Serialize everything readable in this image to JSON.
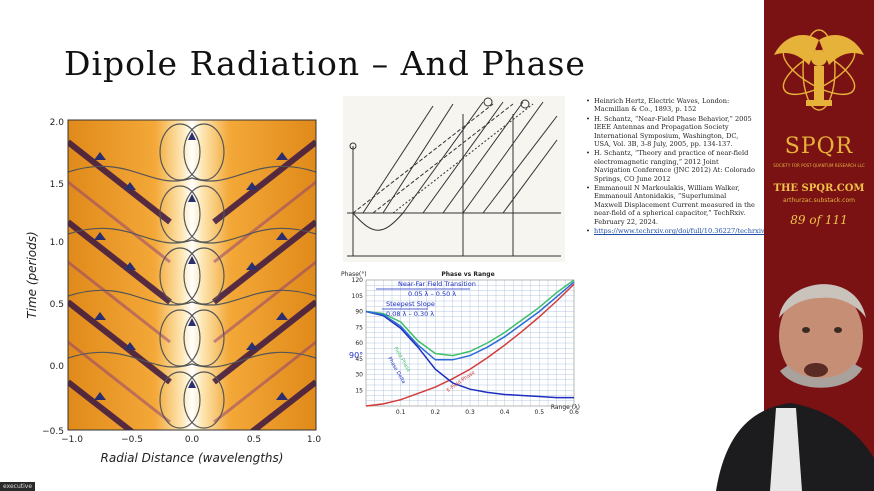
{
  "slide": {
    "title": "Dipole Radiation – And Phase",
    "page_counter": "89 of 111"
  },
  "left_plot": {
    "xlabel": "Radial Distance (wavelengths)",
    "ylabel": "Time (periods)",
    "xticks": [
      "−1.0",
      "−0.5",
      "0.0",
      "0.5",
      "1.0"
    ],
    "yticks": [
      "−0.5",
      "0.0",
      "0.5",
      "1.0",
      "1.5",
      "2.0"
    ]
  },
  "sketch": {
    "description_free": true
  },
  "phase_plot": {
    "title": "Phase vs Range",
    "ylabel": "Phase(°)",
    "xlabel": "Range (λ)",
    "yticks": [
      "15",
      "30",
      "45",
      "60",
      "75",
      "90",
      "105",
      "120"
    ],
    "xticks": [
      "0.1",
      "0.2",
      "0.3",
      "0.4",
      "0.5",
      "0.6"
    ],
    "annotations": {
      "nf_transition": "Near-Far Field Transition",
      "nf_range": "0.05 λ – 0.50 λ",
      "steepest": "Steepest Slope",
      "steepest_range": "0.08 λ – 0.30 λ",
      "ninety": "90°",
      "field_phase": "Field Phase",
      "phase_delta": "Phase Delta",
      "e_phase": "E-Field Phase",
      "h_phase": "H-Field Phase"
    }
  },
  "chart_data": {
    "type": "line",
    "title": "Phase vs Range",
    "xlabel": "Range (λ)",
    "ylabel": "Phase(°)",
    "xlim": [
      0,
      0.6
    ],
    "ylim": [
      0,
      120
    ],
    "grid": true,
    "x": [
      0.0,
      0.05,
      0.1,
      0.15,
      0.2,
      0.25,
      0.3,
      0.35,
      0.4,
      0.45,
      0.5,
      0.55,
      0.6
    ],
    "series": [
      {
        "name": "E-Field Phase",
        "color": "#d33c3c",
        "values": [
          0,
          2,
          6,
          12,
          18,
          26,
          35,
          46,
          58,
          71,
          85,
          100,
          116
        ]
      },
      {
        "name": "H-Field Phase",
        "color": "#3fbf6a",
        "values": [
          90,
          88,
          80,
          62,
          50,
          48,
          52,
          60,
          70,
          82,
          94,
          108,
          120
        ]
      },
      {
        "name": "Phase Delta",
        "color": "#1c2fc0",
        "values": [
          90,
          86,
          74,
          56,
          35,
          22,
          16,
          13,
          11,
          10,
          9,
          8,
          8
        ]
      },
      {
        "name": "Field Phase",
        "color": "#2e6bd8",
        "values": [
          90,
          87,
          76,
          58,
          44,
          44,
          48,
          56,
          66,
          78,
          90,
          104,
          118
        ]
      }
    ]
  },
  "references": [
    {
      "text": "Heinrich Hertz, Electric Waves, London: Macmillan & Co., 1893, p. 152"
    },
    {
      "text": "H. Schantz, “Near-Field Phase Behavior,” 2005 IEEE Antennas and Propagation Society International Symposium, Washington, DC, USA, Vol. 3B, 3-8 July, 2005, pp. 134-137."
    },
    {
      "text": "H. Schantz, “Theory and practice of near-field electromagnetic ranging,” 2012 Joint Navigation Conference (JNC 2012) At: Colorado Springs, CO June 2012"
    },
    {
      "text": "Emmanouil N Markoulakis, William Walker, Emmanouil Antonidakis, “Superluminal Maxwell Displacement Current measured in the near-field of a spherical capacitor,” TechRxiv. February 22, 2024."
    },
    {
      "link": "https://www.techrxiv.org/doi/full/10.36227/techrxiv.170862178.82175789/v1"
    }
  ],
  "banner": {
    "org": "SPQR",
    "tagline": "SOCIETY FOR POST-QUANTUM RESEARCH LLC",
    "site": "THE SPQR.COM",
    "substack": "arthurzac.substack.com",
    "color": "#7a1214",
    "accent": "#e7b23a"
  },
  "video": {
    "name_tag": "executive"
  }
}
